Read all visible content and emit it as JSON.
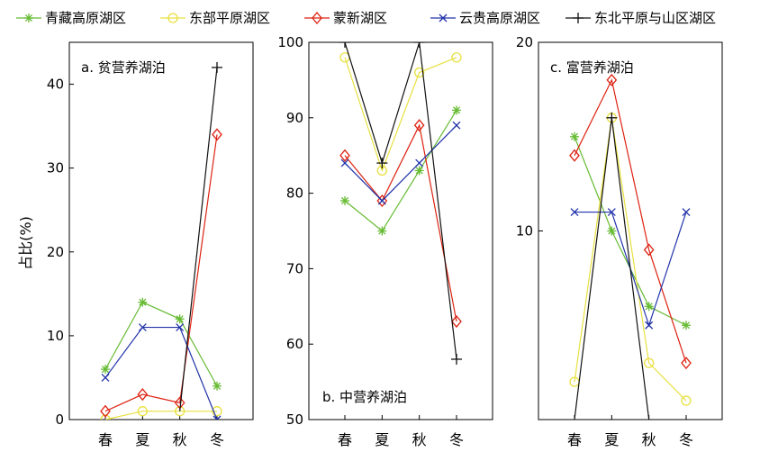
{
  "legend": [
    {
      "name": "青藏高原湖区",
      "color": "#66bb33",
      "marker": "asterisk"
    },
    {
      "name": "东部平原湖区",
      "color": "#e8e040",
      "marker": "circle"
    },
    {
      "name": "蒙新湖区",
      "color": "#dd2211",
      "marker": "diamond"
    },
    {
      "name": "云贵高原湖区",
      "color": "#2233aa",
      "marker": "x"
    },
    {
      "name": "东北平原与山区湖区",
      "color": "#111111",
      "marker": "plus"
    }
  ],
  "ylabel": "占比(%)",
  "chart_data": [
    {
      "type": "line",
      "title": "a. 贫营养湖泊",
      "categories": [
        "春",
        "夏",
        "秋",
        "冬"
      ],
      "ylim": [
        0,
        45
      ],
      "yticks": [
        0,
        10,
        20,
        30,
        40
      ],
      "series": [
        {
          "name": "青藏高原湖区",
          "values": [
            6,
            14,
            12,
            4
          ]
        },
        {
          "name": "东部平原湖区",
          "values": [
            0,
            1,
            1,
            1
          ]
        },
        {
          "name": "蒙新湖区",
          "values": [
            1,
            3,
            2,
            34
          ]
        },
        {
          "name": "云贵高原湖区",
          "values": [
            5,
            11,
            11,
            0
          ]
        },
        {
          "name": "东北平原与山区湖区",
          "values": [
            null,
            null,
            1,
            42
          ]
        }
      ]
    },
    {
      "type": "line",
      "title": "b. 中营养湖泊",
      "categories": [
        "春",
        "夏",
        "秋",
        "冬"
      ],
      "ylim": [
        50,
        100
      ],
      "yticks": [
        50,
        60,
        70,
        80,
        90,
        100
      ],
      "series": [
        {
          "name": "青藏高原湖区",
          "values": [
            79,
            75,
            83,
            91
          ]
        },
        {
          "name": "东部平原湖区",
          "values": [
            98,
            83,
            96,
            98
          ]
        },
        {
          "name": "蒙新湖区",
          "values": [
            85,
            79,
            89,
            63
          ]
        },
        {
          "name": "云贵高原湖区",
          "values": [
            84,
            79,
            84,
            89
          ]
        },
        {
          "name": "东北平原与山区湖区",
          "values": [
            100,
            84,
            100,
            58
          ]
        }
      ]
    },
    {
      "type": "line",
      "title": "c. 富营养湖泊",
      "categories": [
        "春",
        "夏",
        "秋",
        "冬"
      ],
      "ylim": [
        0,
        20
      ],
      "yticks": [
        10,
        20
      ],
      "series": [
        {
          "name": "青藏高原湖区",
          "values": [
            15,
            10,
            6,
            5
          ]
        },
        {
          "name": "东部平原湖区",
          "values": [
            2,
            16,
            3,
            1
          ]
        },
        {
          "name": "蒙新湖区",
          "values": [
            14,
            18,
            9,
            3
          ]
        },
        {
          "name": "云贵高原湖区",
          "values": [
            11,
            11,
            5,
            11
          ]
        },
        {
          "name": "东北平原与山区湖区",
          "values": [
            0,
            16,
            0,
            null
          ]
        }
      ]
    }
  ]
}
